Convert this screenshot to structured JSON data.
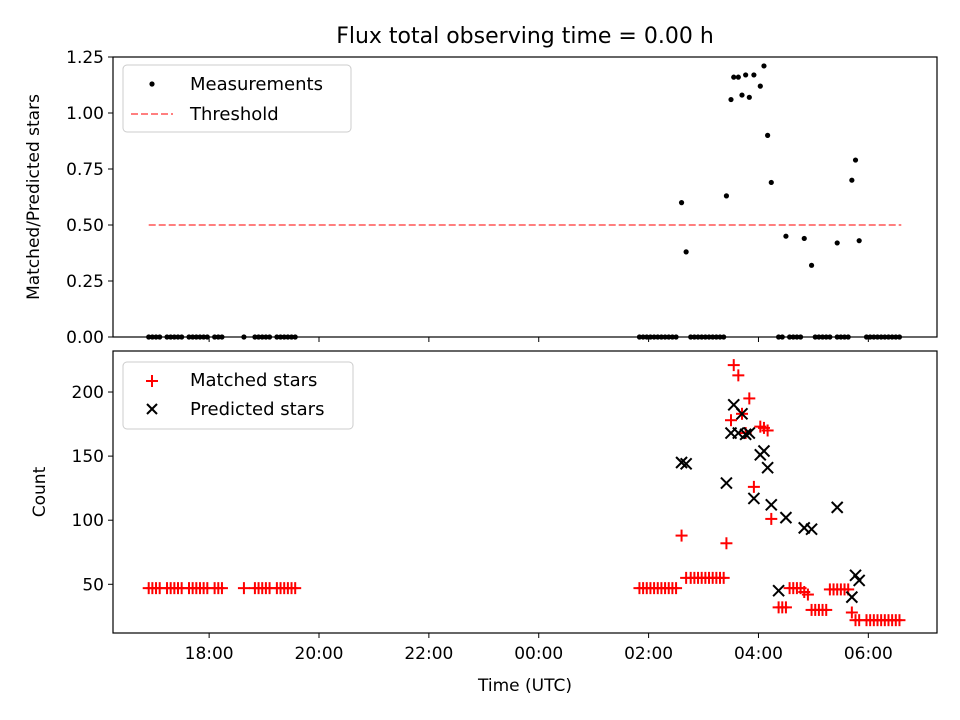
{
  "chart_data": [
    {
      "type": "scatter",
      "title": "Flux total observing time = 0.00 h",
      "xlabel": "",
      "ylabel": "Matched/Predicted stars",
      "xlim": [
        "16:15",
        "07:15"
      ],
      "ylim": [
        0,
        1.25
      ],
      "y_ticks": [
        0.0,
        0.25,
        0.5,
        0.75,
        1.0,
        1.25
      ],
      "y_tick_labels": [
        "0.00",
        "0.25",
        "0.50",
        "0.75",
        "1.00",
        "1.25"
      ],
      "legend_position": "top-left",
      "legend": [
        {
          "label": "Measurements",
          "marker": "dot",
          "color": "#000000"
        },
        {
          "label": "Threshold",
          "marker": "dashed-line",
          "color": "#ff7f7f"
        }
      ],
      "threshold": {
        "y": 0.5,
        "x_start": "16:54",
        "x_end": "06:36"
      },
      "series": [
        {
          "name": "Measurements",
          "marker": "dot",
          "color": "#000000",
          "points": [
            [
              "16:54",
              0
            ],
            [
              "16:58",
              0
            ],
            [
              "17:02",
              0
            ],
            [
              "17:06",
              0
            ],
            [
              "17:14",
              0
            ],
            [
              "17:18",
              0
            ],
            [
              "17:22",
              0
            ],
            [
              "17:26",
              0
            ],
            [
              "17:30",
              0
            ],
            [
              "17:38",
              0
            ],
            [
              "17:42",
              0
            ],
            [
              "17:46",
              0
            ],
            [
              "17:50",
              0
            ],
            [
              "17:54",
              0
            ],
            [
              "17:58",
              0
            ],
            [
              "18:06",
              0
            ],
            [
              "18:10",
              0
            ],
            [
              "18:14",
              0
            ],
            [
              "18:38",
              0
            ],
            [
              "18:50",
              0
            ],
            [
              "18:54",
              0
            ],
            [
              "18:58",
              0
            ],
            [
              "19:02",
              0
            ],
            [
              "19:06",
              0
            ],
            [
              "19:14",
              0
            ],
            [
              "19:18",
              0
            ],
            [
              "19:22",
              0
            ],
            [
              "19:26",
              0
            ],
            [
              "19:30",
              0
            ],
            [
              "19:34",
              0
            ],
            [
              "01:50",
              0
            ],
            [
              "01:54",
              0
            ],
            [
              "01:58",
              0
            ],
            [
              "02:02",
              0
            ],
            [
              "02:06",
              0
            ],
            [
              "02:10",
              0
            ],
            [
              "02:14",
              0
            ],
            [
              "02:18",
              0
            ],
            [
              "02:22",
              0
            ],
            [
              "02:26",
              0
            ],
            [
              "02:30",
              0
            ],
            [
              "02:36",
              0.6
            ],
            [
              "02:41",
              0.38
            ],
            [
              "02:46",
              0
            ],
            [
              "02:50",
              0
            ],
            [
              "02:54",
              0
            ],
            [
              "02:58",
              0
            ],
            [
              "03:02",
              0
            ],
            [
              "03:06",
              0
            ],
            [
              "03:10",
              0
            ],
            [
              "03:14",
              0
            ],
            [
              "03:18",
              0
            ],
            [
              "03:22",
              0
            ],
            [
              "03:25",
              0.63
            ],
            [
              "03:30",
              1.06
            ],
            [
              "03:33",
              1.16
            ],
            [
              "03:38",
              1.16
            ],
            [
              "03:42",
              1.08
            ],
            [
              "03:46",
              1.17
            ],
            [
              "03:50",
              1.07
            ],
            [
              "03:55",
              1.17
            ],
            [
              "04:02",
              1.12
            ],
            [
              "04:06",
              1.21
            ],
            [
              "04:10",
              0.9
            ],
            [
              "04:14",
              0.69
            ],
            [
              "04:22",
              0
            ],
            [
              "04:26",
              0
            ],
            [
              "04:34",
              0
            ],
            [
              "04:38",
              0
            ],
            [
              "04:42",
              0
            ],
            [
              "04:46",
              0
            ],
            [
              "04:30",
              0.45
            ],
            [
              "04:50",
              0.44
            ],
            [
              "04:58",
              0.32
            ],
            [
              "05:02",
              0
            ],
            [
              "05:06",
              0
            ],
            [
              "05:10",
              0
            ],
            [
              "05:14",
              0
            ],
            [
              "05:18",
              0
            ],
            [
              "05:26",
              0
            ],
            [
              "05:30",
              0
            ],
            [
              "05:34",
              0
            ],
            [
              "05:38",
              0
            ],
            [
              "05:26",
              0.42
            ],
            [
              "05:42",
              0.7
            ],
            [
              "05:46",
              0.79
            ],
            [
              "05:50",
              0.43
            ],
            [
              "05:58",
              0
            ],
            [
              "06:02",
              0
            ],
            [
              "06:06",
              0
            ],
            [
              "06:10",
              0
            ],
            [
              "06:14",
              0
            ],
            [
              "06:18",
              0
            ],
            [
              "06:22",
              0
            ],
            [
              "06:26",
              0
            ],
            [
              "06:30",
              0
            ],
            [
              "06:34",
              0
            ]
          ]
        }
      ]
    },
    {
      "type": "scatter",
      "title": "",
      "xlabel": "Time (UTC)",
      "ylabel": "Count",
      "xlim": [
        "16:15",
        "07:15"
      ],
      "ylim": [
        12,
        232
      ],
      "x_ticks": [
        "18:00",
        "20:00",
        "22:00",
        "00:00",
        "02:00",
        "04:00",
        "06:00"
      ],
      "y_ticks": [
        50,
        100,
        150,
        200
      ],
      "y_tick_labels": [
        "50",
        "100",
        "150",
        "200"
      ],
      "legend_position": "top-left",
      "legend": [
        {
          "label": "Matched stars",
          "marker": "plus",
          "color": "#ff0000"
        },
        {
          "label": "Predicted stars",
          "marker": "x",
          "color": "#000000"
        }
      ],
      "series": [
        {
          "name": "Matched stars",
          "marker": "plus",
          "color": "#ff0000",
          "points": [
            [
              "16:54",
              47
            ],
            [
              "16:58",
              47
            ],
            [
              "17:02",
              47
            ],
            [
              "17:06",
              47
            ],
            [
              "17:14",
              47
            ],
            [
              "17:18",
              47
            ],
            [
              "17:22",
              47
            ],
            [
              "17:26",
              47
            ],
            [
              "17:30",
              47
            ],
            [
              "17:38",
              47
            ],
            [
              "17:42",
              47
            ],
            [
              "17:46",
              47
            ],
            [
              "17:50",
              47
            ],
            [
              "17:54",
              47
            ],
            [
              "17:58",
              47
            ],
            [
              "18:06",
              47
            ],
            [
              "18:10",
              47
            ],
            [
              "18:14",
              47
            ],
            [
              "18:38",
              47
            ],
            [
              "18:50",
              47
            ],
            [
              "18:54",
              47
            ],
            [
              "18:58",
              47
            ],
            [
              "19:02",
              47
            ],
            [
              "19:06",
              47
            ],
            [
              "19:14",
              47
            ],
            [
              "19:18",
              47
            ],
            [
              "19:22",
              47
            ],
            [
              "19:26",
              47
            ],
            [
              "19:30",
              47
            ],
            [
              "19:34",
              47
            ],
            [
              "01:50",
              47
            ],
            [
              "01:54",
              47
            ],
            [
              "01:58",
              47
            ],
            [
              "02:02",
              47
            ],
            [
              "02:06",
              47
            ],
            [
              "02:10",
              47
            ],
            [
              "02:14",
              47
            ],
            [
              "02:18",
              47
            ],
            [
              "02:22",
              47
            ],
            [
              "02:26",
              47
            ],
            [
              "02:30",
              47
            ],
            [
              "02:36",
              88
            ],
            [
              "02:41",
              55
            ],
            [
              "02:46",
              55
            ],
            [
              "02:50",
              55
            ],
            [
              "02:54",
              55
            ],
            [
              "02:58",
              55
            ],
            [
              "03:02",
              55
            ],
            [
              "03:06",
              55
            ],
            [
              "03:10",
              55
            ],
            [
              "03:14",
              55
            ],
            [
              "03:18",
              55
            ],
            [
              "03:22",
              55
            ],
            [
              "03:25",
              82
            ],
            [
              "03:30",
              178
            ],
            [
              "03:33",
              221
            ],
            [
              "03:38",
              213
            ],
            [
              "03:42",
              183
            ],
            [
              "03:46",
              168
            ],
            [
              "03:50",
              195
            ],
            [
              "03:55",
              126
            ],
            [
              "04:02",
              173
            ],
            [
              "04:06",
              172
            ],
            [
              "04:10",
              170
            ],
            [
              "04:14",
              101
            ],
            [
              "04:22",
              32
            ],
            [
              "04:26",
              32
            ],
            [
              "04:30",
              32
            ],
            [
              "04:34",
              47
            ],
            [
              "04:38",
              47
            ],
            [
              "04:42",
              47
            ],
            [
              "04:46",
              47
            ],
            [
              "04:50",
              44
            ],
            [
              "04:54",
              42
            ],
            [
              "04:58",
              30
            ],
            [
              "05:02",
              30
            ],
            [
              "05:06",
              30
            ],
            [
              "05:10",
              30
            ],
            [
              "05:14",
              30
            ],
            [
              "05:18",
              46
            ],
            [
              "05:22",
              46
            ],
            [
              "05:26",
              46
            ],
            [
              "05:30",
              46
            ],
            [
              "05:34",
              46
            ],
            [
              "05:38",
              46
            ],
            [
              "05:42",
              28
            ],
            [
              "05:46",
              22
            ],
            [
              "05:50",
              22
            ],
            [
              "05:58",
              22
            ],
            [
              "06:02",
              22
            ],
            [
              "06:06",
              22
            ],
            [
              "06:10",
              22
            ],
            [
              "06:14",
              22
            ],
            [
              "06:18",
              22
            ],
            [
              "06:22",
              22
            ],
            [
              "06:26",
              22
            ],
            [
              "06:30",
              22
            ],
            [
              "06:34",
              22
            ]
          ]
        },
        {
          "name": "Predicted stars",
          "marker": "x",
          "color": "#000000",
          "points": [
            [
              "02:36",
              145
            ],
            [
              "02:41",
              144
            ],
            [
              "03:25",
              129
            ],
            [
              "03:30",
              168
            ],
            [
              "03:33",
              190
            ],
            [
              "03:38",
              168
            ],
            [
              "03:42",
              183
            ],
            [
              "03:46",
              167
            ],
            [
              "03:50",
              168
            ],
            [
              "03:55",
              117
            ],
            [
              "04:02",
              151
            ],
            [
              "04:06",
              154
            ],
            [
              "04:10",
              141
            ],
            [
              "04:14",
              112
            ],
            [
              "04:22",
              45
            ],
            [
              "04:30",
              102
            ],
            [
              "04:50",
              94
            ],
            [
              "04:58",
              93
            ],
            [
              "05:26",
              110
            ],
            [
              "05:42",
              40
            ],
            [
              "05:46",
              57
            ],
            [
              "05:50",
              53
            ]
          ]
        }
      ]
    }
  ]
}
